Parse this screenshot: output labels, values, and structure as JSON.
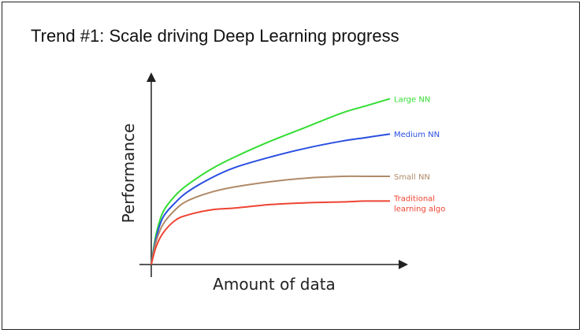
{
  "slide": {
    "title": "Trend #1: Scale driving Deep Learning progress"
  },
  "chart_data": {
    "type": "line",
    "xlabel": "Amount of data",
    "ylabel": "Performance",
    "ylim": [
      0,
      1
    ],
    "grid": false,
    "legend": "inline-right",
    "series": [
      {
        "name": "Large NN",
        "label_lines": [
          "Large NN"
        ],
        "color": "#33dd33",
        "x": [
          0,
          0.02,
          0.05,
          0.1,
          0.15,
          0.25,
          0.35,
          0.5,
          0.65,
          0.8,
          0.9,
          1.0
        ],
        "y": [
          0,
          0.17,
          0.3,
          0.39,
          0.45,
          0.54,
          0.61,
          0.7,
          0.78,
          0.86,
          0.9,
          0.94
        ]
      },
      {
        "name": "Medium NN",
        "label_lines": [
          "Medium NN"
        ],
        "color": "#2a4fe0",
        "x": [
          0,
          0.02,
          0.05,
          0.1,
          0.15,
          0.25,
          0.35,
          0.5,
          0.65,
          0.8,
          0.9,
          1.0
        ],
        "y": [
          0,
          0.15,
          0.27,
          0.35,
          0.41,
          0.49,
          0.55,
          0.61,
          0.66,
          0.7,
          0.72,
          0.74
        ]
      },
      {
        "name": "Small NN",
        "label_lines": [
          "Small NN"
        ],
        "color": "#b08a68",
        "x": [
          0,
          0.02,
          0.05,
          0.1,
          0.15,
          0.25,
          0.35,
          0.5,
          0.65,
          0.8,
          0.9,
          1.0
        ],
        "y": [
          0,
          0.13,
          0.23,
          0.31,
          0.36,
          0.41,
          0.44,
          0.47,
          0.49,
          0.5,
          0.5,
          0.5
        ]
      },
      {
        "name": "Traditional learning algo",
        "label_lines": [
          "Traditional",
          "learning algo"
        ],
        "color": "#ee4433",
        "x": [
          0,
          0.02,
          0.05,
          0.1,
          0.15,
          0.25,
          0.35,
          0.5,
          0.65,
          0.8,
          0.9,
          1.0
        ],
        "y": [
          0,
          0.1,
          0.18,
          0.25,
          0.28,
          0.31,
          0.32,
          0.34,
          0.35,
          0.355,
          0.36,
          0.36
        ]
      }
    ]
  }
}
